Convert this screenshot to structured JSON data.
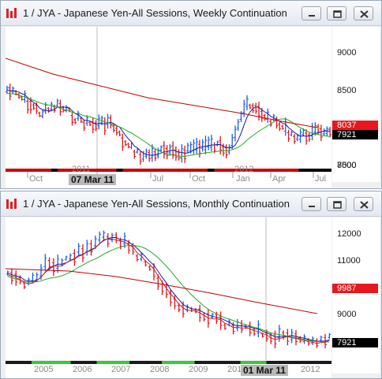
{
  "windows": [
    {
      "title": "1 / JYA - Japanese Yen-All Sessions, Weekly Continuation",
      "y_ticks": [
        "9000",
        "8500",
        "8000",
        "7500"
      ],
      "price_tags": [
        {
          "label": "8037",
          "bg": "#e8171d",
          "fg": "#ffffff"
        },
        {
          "label": "7921",
          "bg": "#000000",
          "fg": "#ffffff"
        }
      ],
      "x_labels": [
        "Oct",
        "2011",
        "Jul",
        "Oct",
        "2012",
        "Jan",
        "Apr",
        "Jul"
      ],
      "cursor_label": "07 Mar 11"
    },
    {
      "title": "1 / JYA - Japanese Yen-All Sessions, Monthly Continuation",
      "y_ticks": [
        "12000",
        "11000",
        "10000",
        "9000"
      ],
      "price_tags": [
        {
          "label": "9987",
          "bg": "#e8171d",
          "fg": "#ffffff"
        },
        {
          "label": "7921",
          "bg": "#000000",
          "fg": "#ffffff"
        }
      ],
      "x_labels": [
        "2005",
        "2006",
        "2007",
        "2008",
        "2009",
        "201",
        "2012"
      ],
      "cursor_label": "01 Mar 11"
    }
  ],
  "colors": {
    "up_bar": "#1f5fe0",
    "down_bar": "#e0141a",
    "ma_fast": "#1a1aa0",
    "ma_mid": "#22aa22",
    "ma_slow": "#c00000",
    "ma_short": "#cc2222"
  },
  "icons": [
    "app-icon",
    "minimize-icon",
    "restore-icon",
    "close-icon"
  ]
}
